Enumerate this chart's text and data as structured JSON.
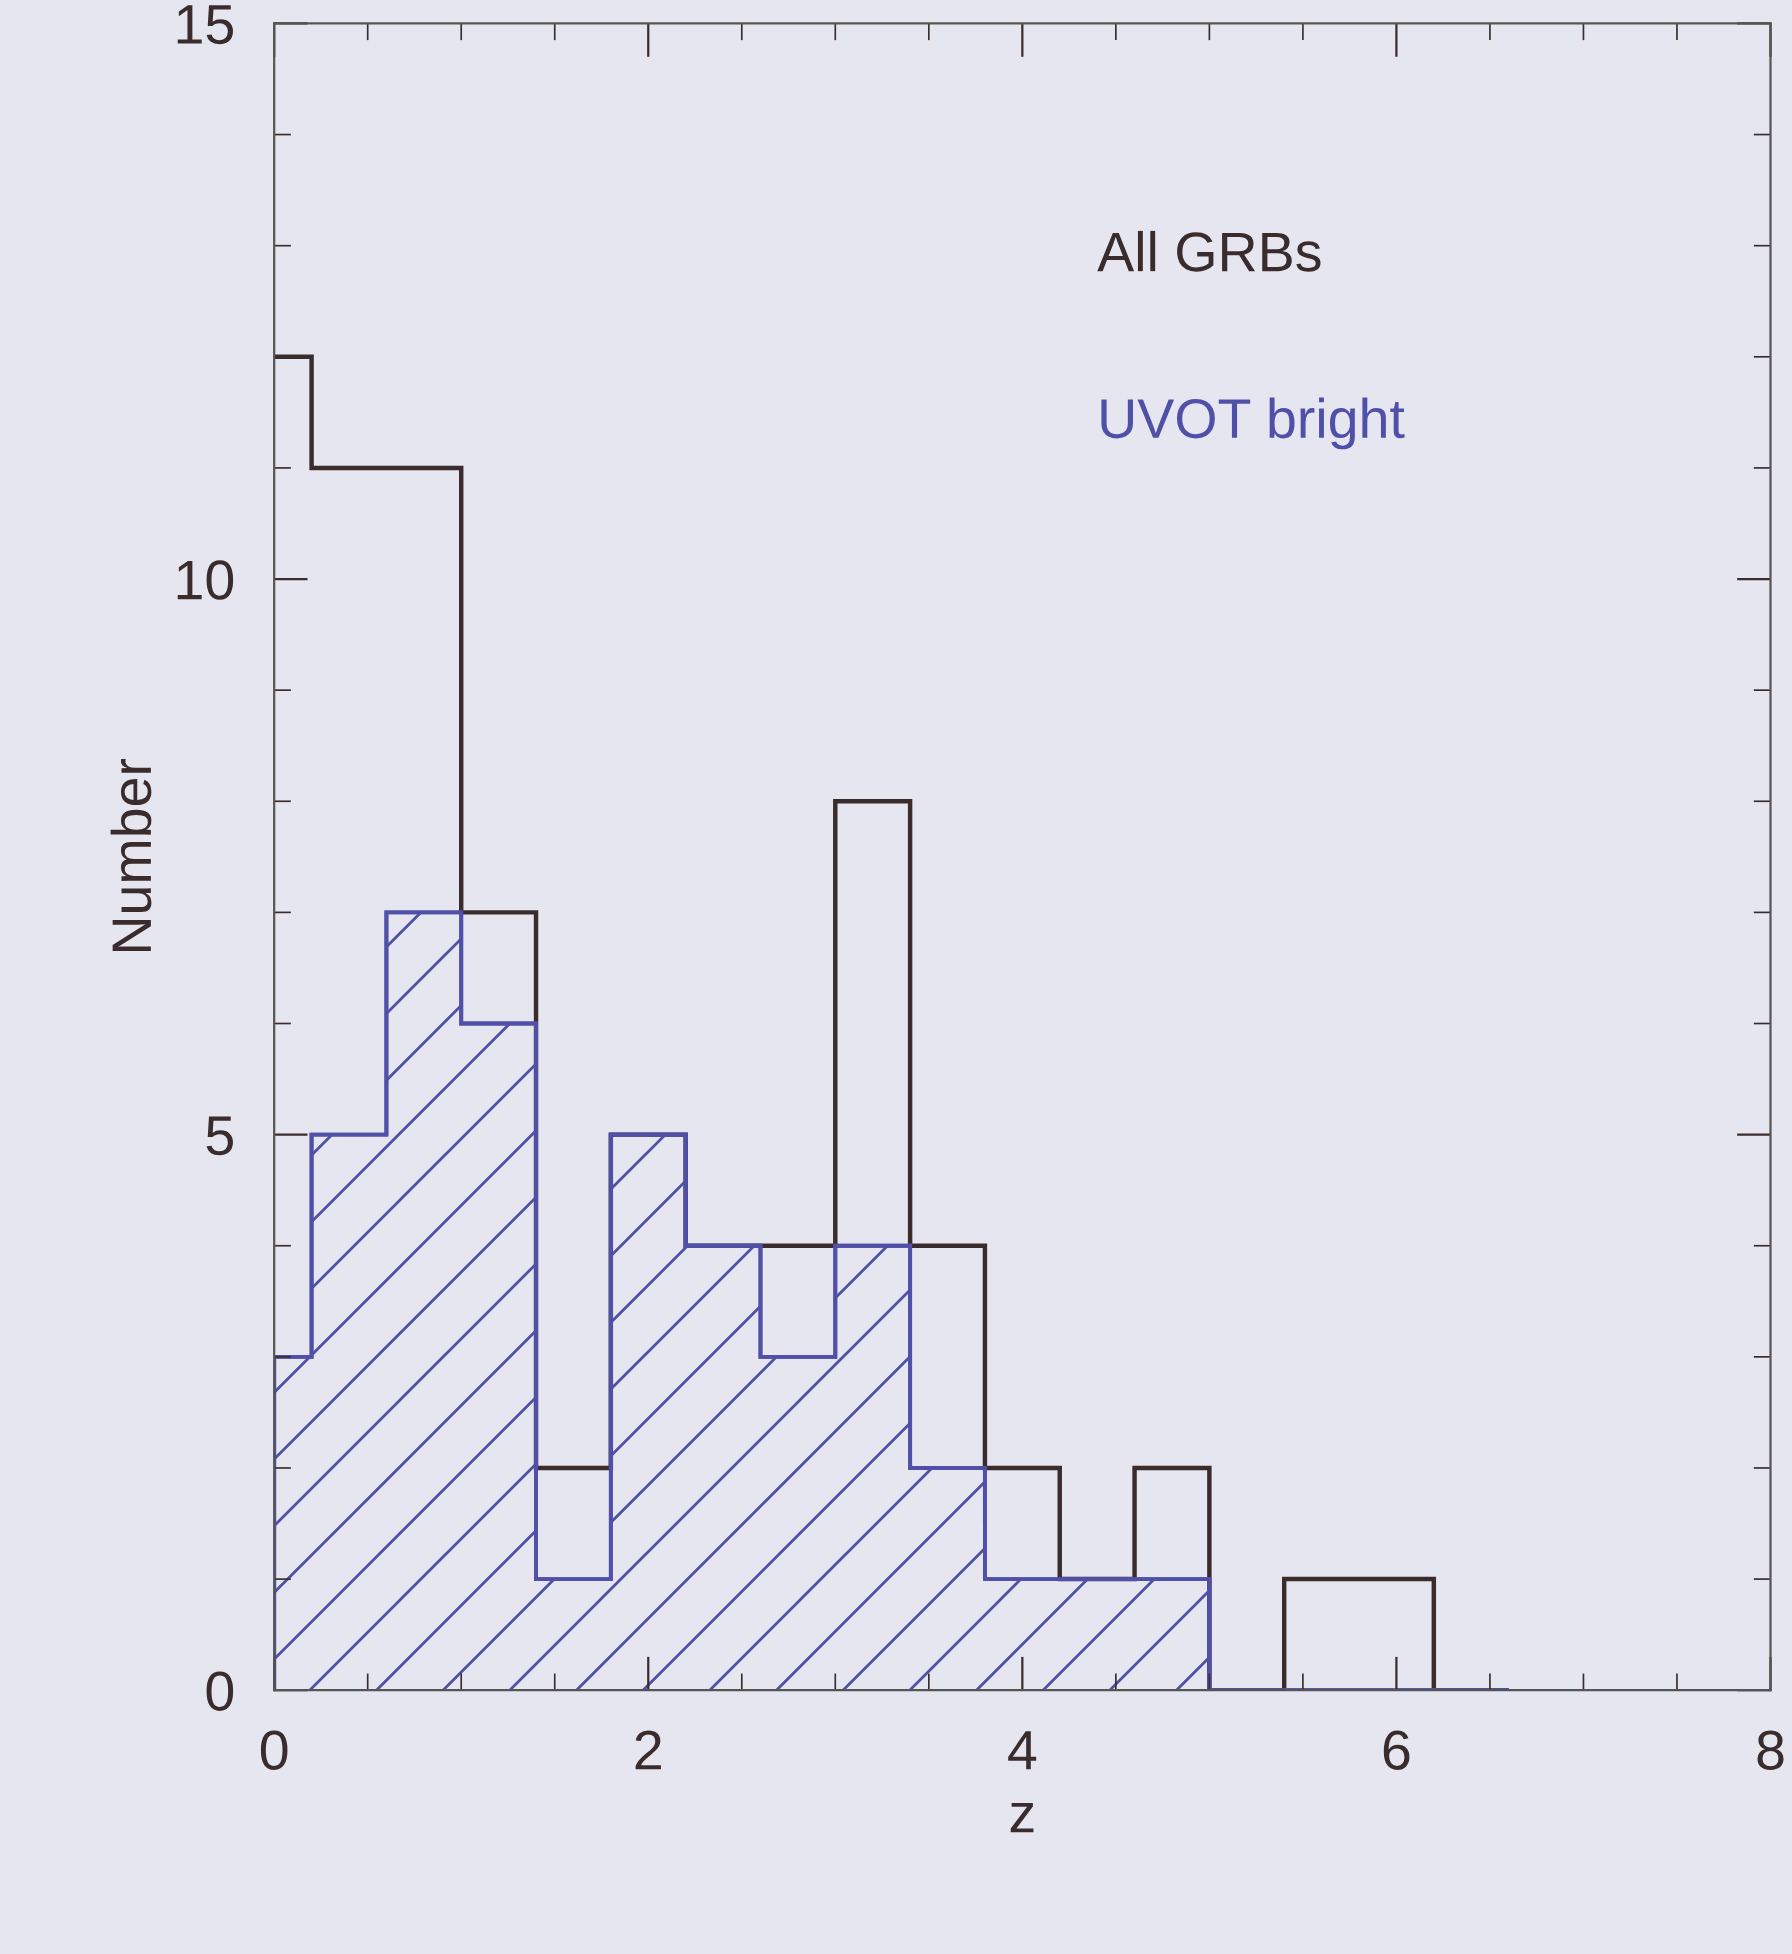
{
  "chart_data": {
    "type": "histogram",
    "xlabel": "z",
    "ylabel": "Number",
    "bins": [
      0,
      0.2,
      0.6,
      1.0,
      1.4,
      1.8,
      2.2,
      2.6,
      3.0,
      3.4,
      3.8,
      4.2,
      4.6,
      5.0,
      5.4,
      5.8,
      6.2,
      6.6
    ],
    "series": [
      {
        "name": "All GRBs",
        "color": "#3a2c2c",
        "values": [
          12,
          11,
          11,
          7,
          2,
          5,
          4,
          4,
          8,
          4,
          2,
          1,
          2,
          0,
          1,
          1,
          0
        ]
      },
      {
        "name": "UVOT bright",
        "color": "#5050a8",
        "values": [
          3,
          5,
          7,
          6,
          1,
          5,
          4,
          3,
          4,
          2,
          1,
          1,
          1,
          0,
          0,
          0,
          0
        ]
      }
    ],
    "xlim": [
      0,
      8
    ],
    "ylim": [
      0,
      15
    ],
    "xticks": [
      0,
      2,
      4,
      6,
      8
    ],
    "yticks": [
      0,
      5,
      10,
      15
    ],
    "grid": false,
    "legend": "top right"
  }
}
